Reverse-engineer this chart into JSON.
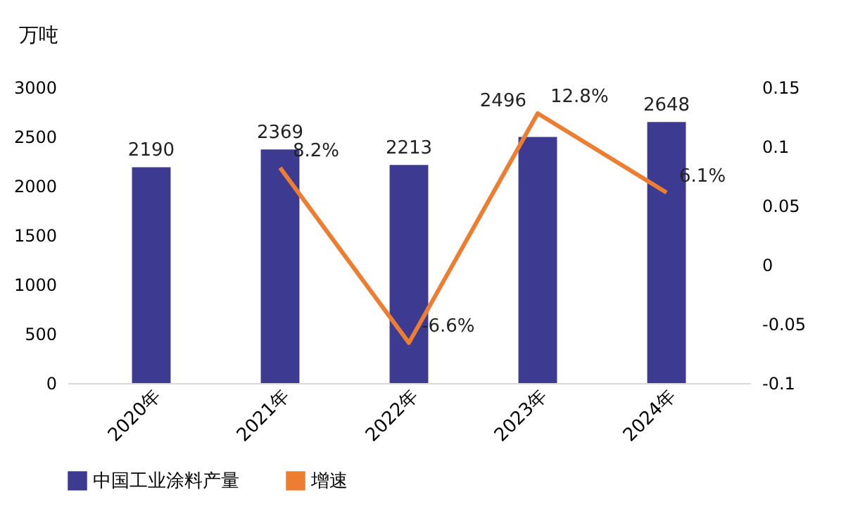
{
  "chart_data": {
    "type": "bar",
    "ylabel": "万吨",
    "categories": [
      "2020年",
      "2021年",
      "2022年",
      "2023年",
      "2024年"
    ],
    "series": [
      {
        "name": "中国工业涂料产量",
        "type": "bar",
        "color": "#3c3a91",
        "values": [
          2190,
          2369,
          2213,
          2496,
          2648
        ]
      },
      {
        "name": "增速",
        "type": "line",
        "axis": "y2",
        "color": "#ed7d31",
        "values": [
          null,
          0.082,
          -0.066,
          0.128,
          0.061
        ],
        "value_labels": [
          null,
          "8.2%",
          "-6.6%",
          "12.8%",
          "6.1%"
        ]
      }
    ],
    "ylim": [
      0,
      3000
    ],
    "yticks": [
      0,
      500,
      1000,
      1500,
      2000,
      2500,
      3000
    ],
    "y2lim": [
      -0.1,
      0.15
    ],
    "y2ticks": [
      -0.1,
      -0.05,
      0,
      0.05,
      0.1,
      0.15
    ],
    "data_labels": true,
    "legend": "bottom",
    "grid": false,
    "marker": "none",
    "line_style": "solid"
  }
}
